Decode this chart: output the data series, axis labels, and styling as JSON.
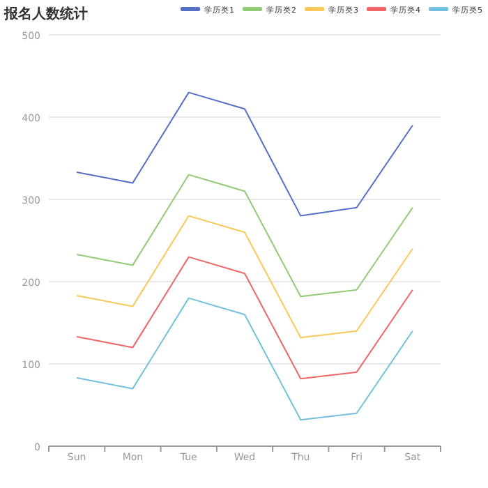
{
  "chart_data": {
    "type": "line",
    "title": "报名人数统计",
    "categories": [
      "Sun",
      "Mon",
      "Tue",
      "Wed",
      "Thu",
      "Fri",
      "Sat"
    ],
    "series": [
      {
        "name": "学历类1",
        "color": "#5470c6",
        "values": [
          333,
          320,
          430,
          410,
          280,
          290,
          390
        ]
      },
      {
        "name": "学历类2",
        "color": "#91cc75",
        "values": [
          233,
          220,
          330,
          310,
          182,
          190,
          290
        ]
      },
      {
        "name": "学历类3",
        "color": "#fac858",
        "values": [
          183,
          170,
          280,
          260,
          132,
          140,
          240
        ]
      },
      {
        "name": "学历类4",
        "color": "#ee6666",
        "values": [
          133,
          120,
          230,
          210,
          82,
          90,
          190
        ]
      },
      {
        "name": "学历类5",
        "color": "#73c0de",
        "values": [
          83,
          70,
          180,
          160,
          32,
          40,
          140
        ]
      }
    ],
    "ylim": [
      0,
      500
    ],
    "yticks": [
      0,
      100,
      200,
      300,
      400,
      500
    ],
    "grid": "y",
    "legend": "top right"
  }
}
